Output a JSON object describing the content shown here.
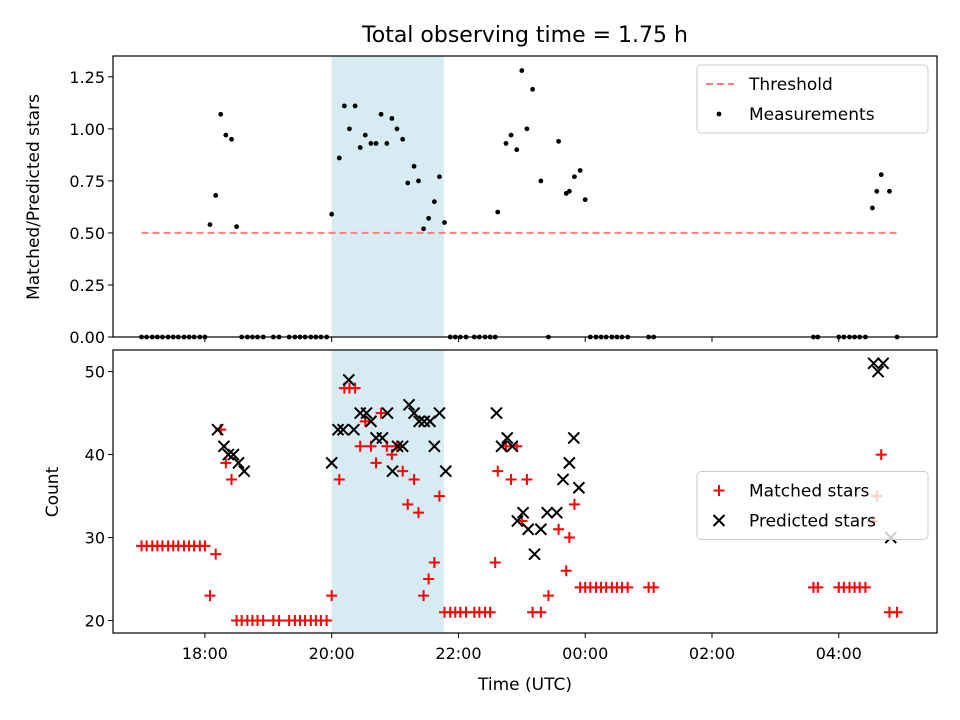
{
  "chart_data": [
    {
      "type": "scatter",
      "title": "Total observing time = 1.75 h",
      "ylabel": "Matched/Predicted stars",
      "xlabel": "",
      "ylim": [
        0,
        1.35
      ],
      "xlim": [
        16.55,
        29.55
      ],
      "yticks": [
        0,
        0.25,
        0.5,
        0.75,
        1.0,
        1.25
      ],
      "ytick_labels": [
        "0.00",
        "0.25",
        "0.50",
        "0.75",
        "1.00",
        "1.25"
      ],
      "highlight_span": [
        20.0,
        21.77
      ],
      "legend_placement": "top-right",
      "series": [
        {
          "name": "Threshold",
          "style": "dashed-line",
          "color": "#ff7f7f",
          "x": [
            17.0,
            28.95
          ],
          "y": [
            0.5,
            0.5
          ]
        },
        {
          "name": "Measurements",
          "style": "dot",
          "color": "#000000",
          "x": [
            17.0,
            17.08,
            17.17,
            17.25,
            17.33,
            17.42,
            17.5,
            17.58,
            17.67,
            17.75,
            17.83,
            17.92,
            18.0,
            18.08,
            18.17,
            18.25,
            18.33,
            18.42,
            18.5,
            18.58,
            18.67,
            18.75,
            18.83,
            18.92,
            19.08,
            19.17,
            19.33,
            19.42,
            19.5,
            19.58,
            19.67,
            19.75,
            19.83,
            19.92,
            20.0,
            20.12,
            20.2,
            20.28,
            20.37,
            20.45,
            20.53,
            20.62,
            20.7,
            20.78,
            20.87,
            20.95,
            21.03,
            21.12,
            21.2,
            21.3,
            21.37,
            21.45,
            21.53,
            21.62,
            21.7,
            21.78,
            21.87,
            21.95,
            22.03,
            22.12,
            22.25,
            22.33,
            22.42,
            22.5,
            22.58,
            22.62,
            22.75,
            22.83,
            22.92,
            23.0,
            23.08,
            23.17,
            23.3,
            23.42,
            23.58,
            23.7,
            23.75,
            23.83,
            23.92,
            24.0,
            24.08,
            24.17,
            24.25,
            24.33,
            24.42,
            24.5,
            24.58,
            24.67,
            25.0,
            25.08,
            27.6,
            27.67,
            28.0,
            28.08,
            28.17,
            28.25,
            28.33,
            28.42,
            28.53,
            28.6,
            28.67,
            28.8,
            28.92
          ],
          "y": [
            0,
            0,
            0,
            0,
            0,
            0,
            0,
            0,
            0,
            0,
            0,
            0,
            0,
            0.54,
            0.68,
            1.07,
            0.97,
            0.95,
            0.53,
            0,
            0,
            0,
            0,
            0,
            0,
            0,
            0,
            0,
            0,
            0,
            0,
            0,
            0,
            0,
            0.59,
            0.86,
            1.11,
            1.0,
            1.11,
            0.91,
            0.97,
            0.93,
            0.93,
            1.07,
            0.93,
            1.05,
            1.0,
            0.95,
            0.74,
            0.82,
            0.75,
            0.52,
            0.57,
            0.65,
            0.77,
            0.55,
            0,
            0,
            0,
            0,
            0,
            0,
            0,
            0,
            0,
            0.6,
            0.93,
            0.97,
            0.9,
            1.28,
            1.0,
            1.19,
            0.75,
            0,
            0.94,
            0.69,
            0.7,
            0.77,
            0.8,
            0.66,
            0,
            0,
            0,
            0,
            0,
            0,
            0,
            0,
            0,
            0,
            0,
            0,
            0,
            0,
            0,
            0,
            0,
            0,
            0.62,
            0.7,
            0.78,
            0.7,
            0
          ]
        }
      ]
    },
    {
      "type": "scatter",
      "xlabel": "Time (UTC)",
      "ylabel": "Count",
      "ylim": [
        18.5,
        52.6
      ],
      "xlim": [
        16.55,
        29.55
      ],
      "yticks": [
        20,
        30,
        40,
        50
      ],
      "ytick_labels": [
        "20",
        "30",
        "40",
        "50"
      ],
      "xticks": [
        18,
        20,
        22,
        24,
        26,
        28
      ],
      "xtick_labels": [
        "18:00",
        "20:00",
        "22:00",
        "00:00",
        "02:00",
        "04:00"
      ],
      "highlight_span": [
        20.0,
        21.77
      ],
      "legend_placement": "center-right",
      "series": [
        {
          "name": "Matched stars",
          "style": "plus",
          "color": "#ff0000",
          "x": [
            17.0,
            17.08,
            17.17,
            17.25,
            17.33,
            17.42,
            17.5,
            17.58,
            17.67,
            17.75,
            17.83,
            17.92,
            18.0,
            18.08,
            18.17,
            18.25,
            18.33,
            18.42,
            18.5,
            18.58,
            18.67,
            18.75,
            18.83,
            18.92,
            19.08,
            19.17,
            19.33,
            19.42,
            19.5,
            19.58,
            19.67,
            19.75,
            19.83,
            19.92,
            20.0,
            20.12,
            20.2,
            20.28,
            20.37,
            20.45,
            20.53,
            20.62,
            20.7,
            20.78,
            20.87,
            20.95,
            21.03,
            21.12,
            21.2,
            21.3,
            21.37,
            21.45,
            21.53,
            21.62,
            21.7,
            21.78,
            21.87,
            21.95,
            22.03,
            22.12,
            22.25,
            22.33,
            22.42,
            22.5,
            22.58,
            22.62,
            22.75,
            22.83,
            22.92,
            23.0,
            23.08,
            23.17,
            23.3,
            23.42,
            23.58,
            23.7,
            23.75,
            23.83,
            23.92,
            24.0,
            24.08,
            24.17,
            24.25,
            24.33,
            24.42,
            24.5,
            24.58,
            24.67,
            25.0,
            25.08,
            27.6,
            27.67,
            28.0,
            28.08,
            28.17,
            28.25,
            28.33,
            28.42,
            28.53,
            28.6,
            28.67,
            28.8,
            28.92
          ],
          "y": [
            29,
            29,
            29,
            29,
            29,
            29,
            29,
            29,
            29,
            29,
            29,
            29,
            29,
            23,
            28,
            43,
            39,
            37,
            20,
            20,
            20,
            20,
            20,
            20,
            20,
            20,
            20,
            20,
            20,
            20,
            20,
            20,
            20,
            20,
            23,
            37,
            48,
            48,
            48,
            41,
            44,
            41,
            39,
            45,
            41,
            40,
            41,
            38,
            34,
            37,
            33,
            23,
            25,
            27,
            35,
            21,
            21,
            21,
            21,
            21,
            21,
            21,
            21,
            21,
            27,
            38,
            41,
            37,
            41,
            32,
            37,
            21,
            21,
            23,
            31,
            26,
            30,
            34,
            24,
            24,
            24,
            24,
            24,
            24,
            24,
            24,
            24,
            24,
            24,
            24,
            24,
            24,
            24,
            24,
            24,
            24,
            24,
            24,
            32,
            35,
            40,
            21,
            21
          ]
        },
        {
          "name": "Predicted stars",
          "style": "x",
          "color": "#000000",
          "x": [
            18.2,
            18.3,
            18.37,
            18.45,
            18.53,
            18.62,
            20.0,
            20.1,
            20.18,
            20.27,
            20.35,
            20.45,
            20.55,
            20.62,
            20.7,
            20.8,
            20.88,
            20.96,
            21.04,
            21.12,
            21.22,
            21.3,
            21.38,
            21.46,
            21.55,
            21.62,
            21.7,
            21.8,
            22.6,
            22.68,
            22.77,
            22.85,
            22.93,
            23.02,
            23.1,
            23.2,
            23.3,
            23.4,
            23.55,
            23.65,
            23.75,
            23.82,
            23.9,
            28.55,
            28.62,
            28.7,
            28.82
          ],
          "y": [
            43,
            41,
            40,
            40,
            39,
            38,
            39,
            43,
            43,
            49,
            43,
            45,
            45,
            44,
            42,
            42,
            45,
            38,
            41,
            41,
            46,
            45,
            44,
            44,
            44,
            41,
            45,
            38,
            45,
            41,
            42,
            41,
            32,
            33,
            31,
            28,
            31,
            33,
            33,
            37,
            39,
            42,
            36,
            51,
            50,
            51,
            30
          ]
        }
      ]
    }
  ]
}
